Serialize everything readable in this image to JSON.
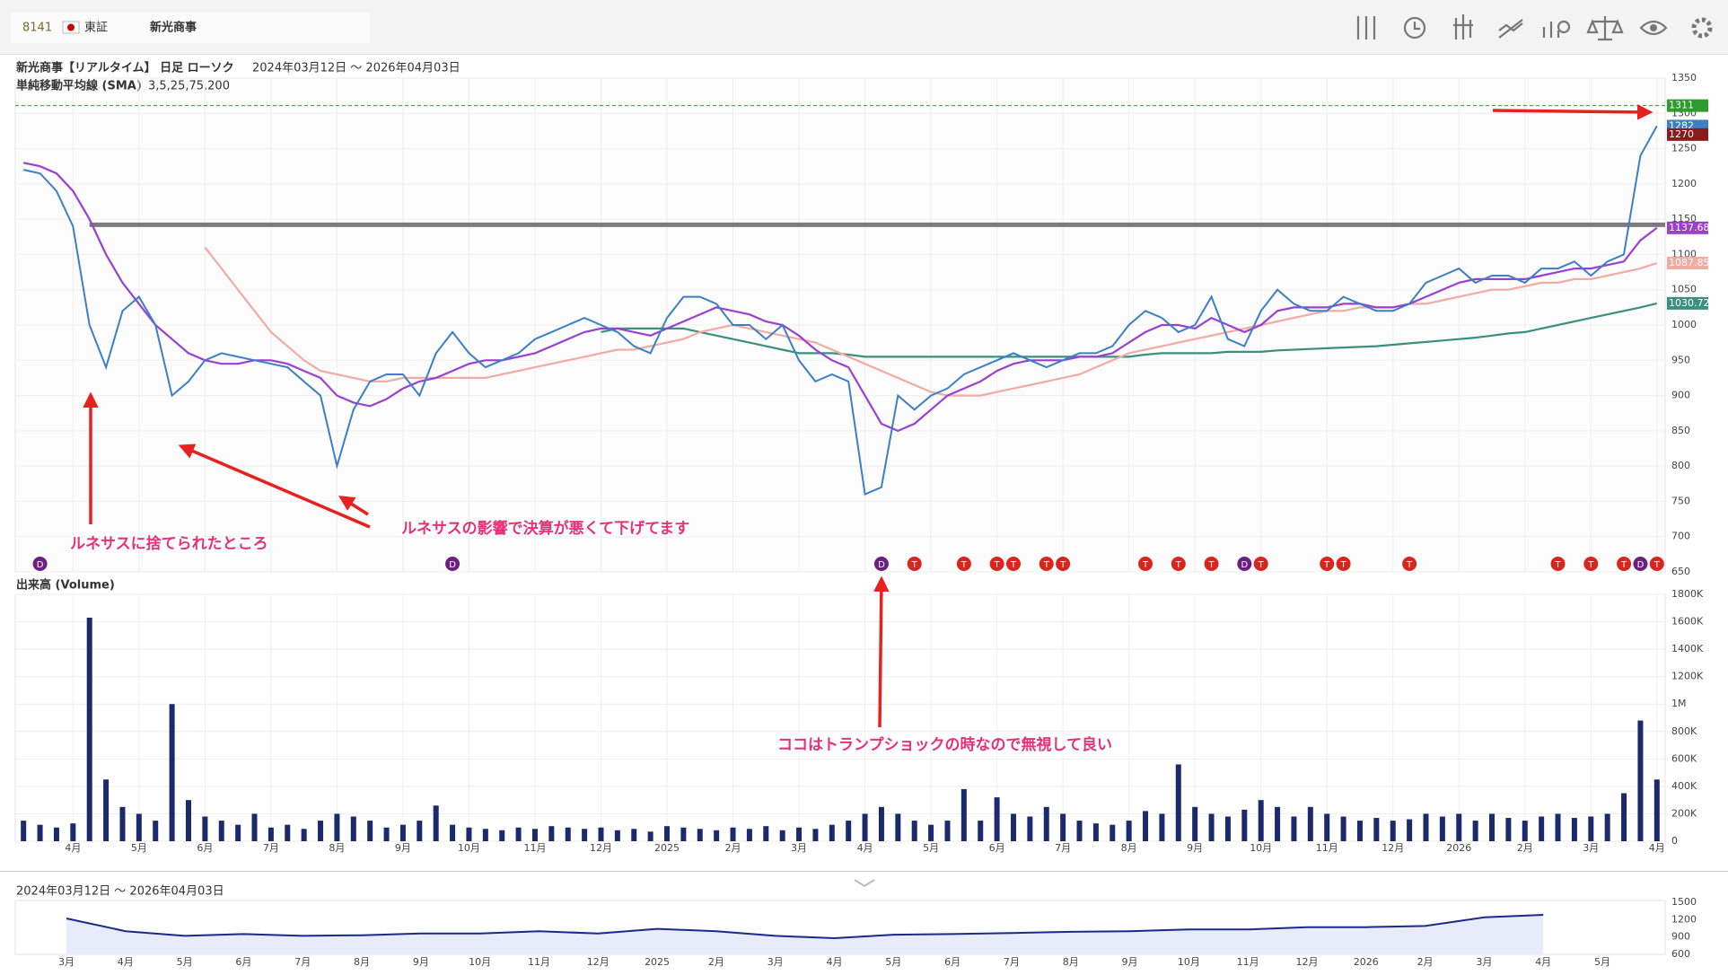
{
  "header": {
    "code": "8141",
    "market": "東証",
    "name": "新光商事"
  },
  "chart_data": [
    {
      "type": "line",
      "title": "新光商事【リアルタイム】 日足 ローソク",
      "subtitle": "2024年03月12日 ～ 2026年04月03日",
      "indicator": "単純移動平均線 (SMA)",
      "indicator_params": "3,5,25,75,200",
      "categories": [
        null,
        null,
        null,
        "4月",
        null,
        null,
        null,
        "5月",
        null,
        null,
        null,
        "6月",
        null,
        null,
        null,
        "7月",
        null,
        null,
        null,
        "8月",
        null,
        null,
        null,
        "9月",
        null,
        null,
        null,
        "10月",
        null,
        null,
        null,
        "11月",
        null,
        null,
        null,
        "12月",
        null,
        null,
        null,
        "2025",
        null,
        null,
        null,
        "2月",
        null,
        null,
        null,
        "3月",
        null,
        null,
        null,
        "4月",
        null,
        null,
        null,
        "5月",
        null,
        null,
        null,
        "6月",
        null,
        null,
        null,
        "7月",
        null,
        null,
        null,
        "8月",
        null,
        null,
        null,
        "9月",
        null,
        null,
        null,
        "10月",
        null,
        null,
        null,
        "11月",
        null,
        null,
        null,
        "12月",
        null,
        null,
        null,
        "2026",
        null,
        null,
        null,
        "2月",
        null,
        null,
        null,
        "3月",
        null,
        null,
        null,
        "4月"
      ],
      "series": [
        {
          "color": "#3a7fc8",
          "values": [
            1220,
            1215,
            1190,
            1140,
            1000,
            940,
            1020,
            1040,
            1000,
            900,
            920,
            950,
            960,
            955,
            950,
            945,
            940,
            920,
            900,
            800,
            880,
            920,
            930,
            930,
            900,
            960,
            990,
            960,
            940,
            950,
            960,
            980,
            990,
            1000,
            1010,
            1000,
            990,
            970,
            960,
            1010,
            1040,
            1040,
            1030,
            1000,
            1000,
            980,
            1000,
            950,
            920,
            930,
            920,
            760,
            770,
            900,
            880,
            900,
            910,
            930,
            940,
            950,
            960,
            950,
            940,
            950,
            960,
            960,
            970,
            1000,
            1020,
            1010,
            990,
            1000,
            1040,
            980,
            970,
            1020,
            1050,
            1030,
            1020,
            1020,
            1040,
            1030,
            1020,
            1020,
            1030,
            1060,
            1070,
            1080,
            1060,
            1070,
            1070,
            1060,
            1080,
            1080,
            1090,
            1070,
            1090,
            1100,
            1240,
            1282
          ]
        },
        {
          "color": "#9b3fd0",
          "values": [
            1230,
            1225,
            1215,
            1190,
            1150,
            1100,
            1060,
            1030,
            1000,
            980,
            960,
            950,
            945,
            945,
            950,
            950,
            945,
            935,
            925,
            900,
            890,
            885,
            895,
            910,
            920,
            925,
            935,
            945,
            950,
            950,
            955,
            960,
            970,
            980,
            990,
            995,
            995,
            990,
            985,
            995,
            1005,
            1015,
            1025,
            1020,
            1015,
            1005,
            1000,
            985,
            965,
            950,
            940,
            900,
            860,
            850,
            860,
            880,
            900,
            910,
            920,
            935,
            945,
            950,
            950,
            950,
            955,
            955,
            960,
            975,
            990,
            1000,
            1000,
            995,
            1010,
            1000,
            990,
            1000,
            1020,
            1025,
            1025,
            1025,
            1030,
            1030,
            1025,
            1025,
            1030,
            1040,
            1050,
            1060,
            1065,
            1065,
            1065,
            1065,
            1070,
            1075,
            1080,
            1080,
            1085,
            1090,
            1120,
            1137.68
          ]
        },
        {
          "color": "#f2aaa2",
          "values": [
            null,
            null,
            null,
            null,
            null,
            null,
            null,
            null,
            null,
            null,
            null,
            1110,
            1080,
            1050,
            1020,
            990,
            970,
            950,
            935,
            930,
            925,
            920,
            920,
            925,
            925,
            925,
            925,
            925,
            925,
            930,
            935,
            940,
            945,
            950,
            955,
            960,
            965,
            965,
            970,
            975,
            980,
            990,
            995,
            1000,
            995,
            990,
            985,
            980,
            975,
            965,
            955,
            945,
            935,
            925,
            915,
            905,
            900,
            900,
            900,
            905,
            910,
            915,
            920,
            925,
            930,
            940,
            950,
            960,
            965,
            970,
            975,
            980,
            985,
            990,
            995,
            1000,
            1005,
            1010,
            1015,
            1020,
            1020,
            1025,
            1025,
            1025,
            1030,
            1030,
            1035,
            1040,
            1045,
            1050,
            1050,
            1055,
            1060,
            1060,
            1065,
            1065,
            1070,
            1075,
            1080,
            1087.85
          ]
        },
        {
          "color": "#3a8f7f",
          "values": [
            null,
            null,
            null,
            null,
            null,
            null,
            null,
            null,
            null,
            null,
            null,
            null,
            null,
            null,
            null,
            null,
            null,
            null,
            null,
            null,
            null,
            null,
            null,
            null,
            null,
            null,
            null,
            null,
            null,
            null,
            null,
            null,
            null,
            null,
            null,
            990,
            995,
            995,
            995,
            995,
            995,
            990,
            985,
            980,
            975,
            970,
            965,
            960,
            960,
            960,
            958,
            955,
            955,
            955,
            955,
            955,
            955,
            955,
            955,
            955,
            955,
            955,
            955,
            955,
            955,
            955,
            955,
            955,
            958,
            960,
            960,
            960,
            960,
            962,
            962,
            962,
            964,
            965,
            966,
            967,
            968,
            969,
            970,
            972,
            974,
            976,
            978,
            980,
            982,
            985,
            988,
            990,
            995,
            1000,
            1005,
            1010,
            1015,
            1020,
            1025,
            1030.72
          ]
        }
      ],
      "value_tags": [
        {
          "value": 1311,
          "color": "#2a9d2a"
        },
        {
          "value": 1282,
          "color": "#3a7fc8"
        },
        {
          "value": 1270,
          "color": "#8b1a1a"
        },
        {
          "value": 1137.68,
          "color": "#9b3fd0"
        },
        {
          "value": 1087.85,
          "color": "#f2aaa2"
        },
        {
          "value": 1030.72,
          "color": "#3a8f7f"
        }
      ],
      "reference_lines": [
        1142
      ],
      "events": [
        null,
        "D",
        null,
        null,
        null,
        null,
        null,
        null,
        null,
        null,
        null,
        null,
        null,
        null,
        null,
        null,
        null,
        null,
        null,
        null,
        null,
        null,
        null,
        null,
        null,
        null,
        "D",
        null,
        null,
        null,
        null,
        null,
        null,
        null,
        null,
        null,
        null,
        null,
        null,
        null,
        null,
        null,
        null,
        null,
        null,
        null,
        null,
        null,
        null,
        null,
        null,
        null,
        "D",
        null,
        "T",
        null,
        null,
        "T",
        null,
        "T",
        "T",
        null,
        "T",
        "T",
        null,
        null,
        null,
        null,
        "T",
        null,
        "T",
        null,
        "T",
        null,
        "D",
        "T",
        null,
        null,
        null,
        "T",
        "T",
        null,
        null,
        null,
        "T",
        null,
        null,
        null,
        null,
        null,
        null,
        null,
        null,
        "T",
        null,
        "T",
        null,
        "T",
        "D",
        "T"
      ],
      "event_colors": {
        "D": "#6b1f7f",
        "T": "#d7261e"
      },
      "annotations": [
        "ルネサスに捨てられたところ",
        "ルネサスの影響で決算が悪くて下げてます",
        "ココはトランプショックの時なので無視して良い"
      ],
      "ylim": [
        650,
        1350
      ],
      "yticks": [
        650,
        700,
        750,
        800,
        850,
        900,
        950,
        1000,
        1050,
        1100,
        1150,
        1200,
        1250,
        1300,
        1350
      ],
      "grid": true
    },
    {
      "type": "bar",
      "title": "出来高 (Volume)",
      "color": "#1a2a6c",
      "values": [
        150000,
        120000,
        100000,
        130000,
        1630000,
        450000,
        250000,
        200000,
        150000,
        1000000,
        300000,
        180000,
        150000,
        120000,
        200000,
        100000,
        120000,
        90000,
        150000,
        200000,
        180000,
        150000,
        100000,
        120000,
        150000,
        260000,
        120000,
        100000,
        90000,
        80000,
        100000,
        90000,
        110000,
        100000,
        90000,
        100000,
        80000,
        90000,
        70000,
        110000,
        100000,
        90000,
        80000,
        100000,
        90000,
        110000,
        80000,
        100000,
        90000,
        120000,
        150000,
        200000,
        250000,
        200000,
        150000,
        120000,
        150000,
        380000,
        150000,
        320000,
        200000,
        180000,
        250000,
        200000,
        150000,
        130000,
        120000,
        150000,
        220000,
        200000,
        560000,
        250000,
        200000,
        180000,
        230000,
        300000,
        250000,
        180000,
        250000,
        200000,
        180000,
        150000,
        170000,
        150000,
        160000,
        200000,
        180000,
        200000,
        150000,
        200000,
        170000,
        150000,
        180000,
        200000,
        170000,
        180000,
        200000,
        350000,
        880000,
        450000
      ],
      "ylim": [
        0,
        1800000
      ],
      "yticks": [
        0,
        {
          "value": 200000,
          "label": "200K"
        },
        {
          "value": 400000,
          "label": "400K"
        },
        {
          "value": 600000,
          "label": "600K"
        },
        {
          "value": 800000,
          "label": "800K"
        },
        {
          "value": 1000000,
          "label": "1M"
        },
        {
          "value": 1200000,
          "label": "1200K"
        },
        {
          "value": 1400000,
          "label": "1400K"
        },
        {
          "value": 1600000,
          "label": "1600K"
        },
        {
          "value": 1800000,
          "label": "1800K"
        }
      ],
      "grid": true
    },
    {
      "type": "area",
      "subtitle": "2024年03月12日 ～ 2026年04月03日",
      "color": "#1a2a8c",
      "categories": [
        "3月",
        "4月",
        "5月",
        "6月",
        "7月",
        "8月",
        "9月",
        "10月",
        "11月",
        "12月",
        "2025",
        "2月",
        "3月",
        "4月",
        "5月",
        "6月",
        "7月",
        "8月",
        "9月",
        "10月",
        "11月",
        "12月",
        "2026",
        "2月",
        "3月",
        "4月",
        "5月"
      ],
      "values": [
        1220,
        1000,
        920,
        950,
        920,
        930,
        960,
        960,
        1000,
        960,
        1040,
        1000,
        920,
        880,
        940,
        950,
        970,
        990,
        1000,
        1030,
        1030,
        1070,
        1070,
        1090,
        1240,
        1282,
        null
      ],
      "ylim": [
        600,
        1500
      ],
      "yticks": [
        600,
        900,
        1200,
        1500
      ]
    }
  ]
}
